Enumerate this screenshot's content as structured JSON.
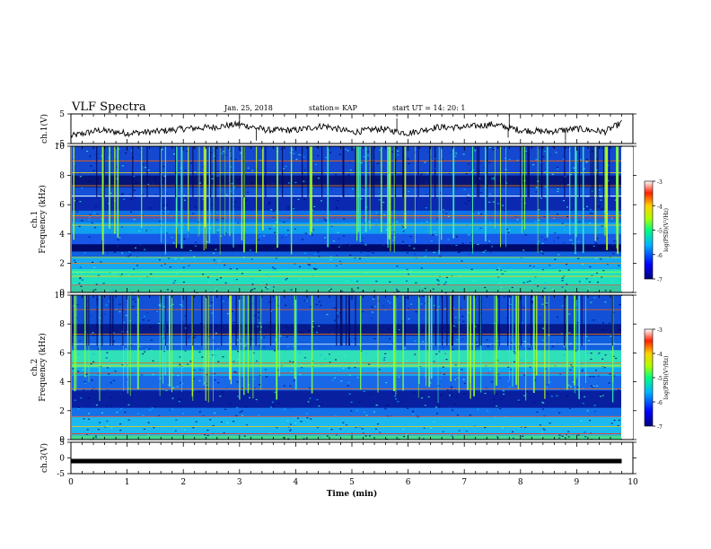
{
  "header": {
    "title": "VLF Spectra",
    "date": "Jan. 25, 2018",
    "station": "station= KAP",
    "start_time": "start  UT =   14: 20: 1"
  },
  "chart_data": [
    {
      "type": "line",
      "ylabel": "ch.1(V)",
      "ylim": [
        -5,
        5
      ],
      "y_ticks": [
        "5",
        "-5"
      ],
      "x": [
        0,
        0.5,
        1,
        1.5,
        2,
        2.5,
        3,
        3.5,
        4,
        4.5,
        5,
        5.5,
        6,
        6.5,
        7,
        7.5,
        8,
        8.5,
        9,
        9.5,
        9.8
      ],
      "y": [
        -2.5,
        -0.5,
        -1.5,
        -1,
        0,
        0.5,
        1.5,
        -0.5,
        -0.5,
        1,
        -1.2,
        0,
        -1.5,
        0.5,
        0.5,
        1.5,
        -0.5,
        -1,
        0,
        -1,
        2
      ]
    },
    {
      "type": "heatmap",
      "ylabel_top": "ch.1",
      "ylabel": "Frequency (kHz)",
      "ylim": [
        0,
        10
      ],
      "y_ticks": [
        "0",
        "2",
        "4",
        "6",
        "8",
        "10"
      ],
      "xlim": [
        0,
        10
      ],
      "colorbar": {
        "label": "log(PSD)(V²/Hz)",
        "range": [
          -7,
          -3
        ],
        "ticks": [
          "-3",
          "-4",
          "-5",
          "-6",
          "-7"
        ]
      }
    },
    {
      "type": "heatmap",
      "ylabel_top": "ch.2",
      "ylabel": "Frequency (kHz)",
      "ylim": [
        0,
        10
      ],
      "y_ticks": [
        "0",
        "2",
        "4",
        "6",
        "8",
        "10"
      ],
      "xlim": [
        0,
        10
      ],
      "colorbar": {
        "label": "log(PSD)(V²/Hz)",
        "range": [
          -7,
          -3
        ],
        "ticks": [
          "-3",
          "-4",
          "-5",
          "-6",
          "-7"
        ]
      }
    },
    {
      "type": "line",
      "ylabel": "ch.3(V)",
      "ylim": [
        -5,
        5
      ],
      "y_ticks": [
        "5",
        "0",
        "-5"
      ],
      "x": [
        0,
        9.8
      ],
      "y": [
        -1,
        -1
      ]
    }
  ],
  "x_axis": {
    "label": "Time  (min)",
    "ticks": [
      "0",
      "1",
      "2",
      "3",
      "4",
      "5",
      "6",
      "7",
      "8",
      "9",
      "10"
    ]
  }
}
